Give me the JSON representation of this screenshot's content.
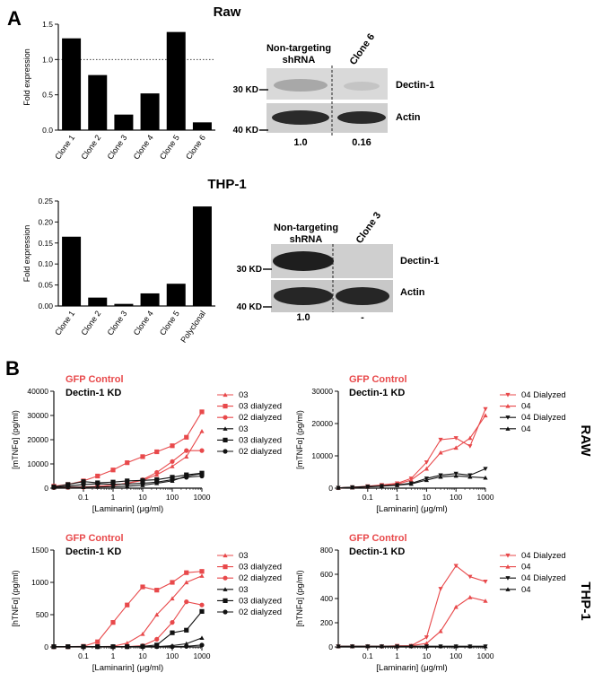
{
  "panel_a": {
    "letter": "A",
    "raw_title": "Raw",
    "thp1_title": "THP-1"
  },
  "panel_b": {
    "letter": "B",
    "row_labels": [
      "RAW",
      "THP-1"
    ],
    "group_gfp": "GFP Control",
    "group_kd": "Dectin-1 KD",
    "red": "#e8494b",
    "black": "#111111"
  },
  "blots": [
    {
      "col1": [
        "Non-targeting",
        "shRNA"
      ],
      "col2": "Clone 6",
      "band1": "Dectin-1",
      "band2": "Actin",
      "marker1": "30 KD",
      "marker2": "40 KD",
      "quant": [
        "1.0",
        "0.16"
      ]
    },
    {
      "col1": [
        "Non-targeting",
        "shRNA"
      ],
      "col2": "Clone 3",
      "band1": "Dectin-1",
      "band2": "Actin",
      "marker1": "30 KD",
      "marker2": "40 KD",
      "quant": [
        "1.0",
        "-"
      ]
    }
  ],
  "chart_data": [
    {
      "type": "bar",
      "title": "Raw",
      "ylabel": "Fold expression",
      "categories": [
        "Clone 1",
        "Clone 2",
        "Clone 3",
        "Clone 4",
        "Clone 5",
        "Clone 6"
      ],
      "values": [
        1.3,
        0.78,
        0.22,
        0.52,
        1.39,
        0.11
      ],
      "ylim": [
        0,
        1.5
      ],
      "yticks": [
        "0.0",
        "0.5",
        "1.0",
        "1.5"
      ],
      "reference_line": 1.0
    },
    {
      "type": "bar",
      "title": "THP-1",
      "ylabel": "Fold expression",
      "categories": [
        "Clone 1",
        "Clone 2",
        "Clone 3",
        "Clone 4",
        "Clone 5",
        "Polyclonal"
      ],
      "values": [
        0.165,
        0.02,
        0.005,
        0.03,
        0.053,
        0.237
      ],
      "ylim": [
        0,
        0.25
      ],
      "yticks": [
        "0.00",
        "0.05",
        "0.10",
        "0.15",
        "0.20",
        "0.25"
      ]
    },
    {
      "type": "line",
      "ylabel": "[mTNFα] (pg/ml)",
      "xlabel": "[Laminarin] (μg/ml)",
      "xscale": "log",
      "x": [
        0.01,
        0.03,
        0.1,
        0.3,
        1,
        3,
        10,
        30,
        100,
        300,
        1000
      ],
      "xticks": [
        "0.1",
        "1",
        "10",
        "100",
        "1000"
      ],
      "ylim": [
        0,
        40000
      ],
      "yticks": [
        "0",
        "10000",
        "20000",
        "30000",
        "40000"
      ],
      "series": [
        {
          "name": "03",
          "color": "#e8494b",
          "marker": "triangle-up",
          "values": [
            300,
            400,
            500,
            700,
            1200,
            2000,
            3200,
            5500,
            9000,
            13000,
            23500
          ]
        },
        {
          "name": "03 dialyzed",
          "color": "#e8494b",
          "marker": "square",
          "values": [
            800,
            1500,
            3000,
            5000,
            7500,
            10500,
            13000,
            15000,
            17500,
            21000,
            31500
          ]
        },
        {
          "name": "02 dialyzed",
          "color": "#e8494b",
          "marker": "circle",
          "values": [
            200,
            300,
            400,
            700,
            1200,
            2000,
            3500,
            6500,
            11000,
            15500,
            15500
          ]
        },
        {
          "name": "03",
          "color": "#111111",
          "marker": "triangle-up",
          "values": [
            200,
            300,
            400,
            500,
            600,
            800,
            1200,
            2000,
            3000,
            5000,
            6000
          ]
        },
        {
          "name": "03 dialyzed",
          "color": "#111111",
          "marker": "square",
          "values": [
            500,
            1500,
            2700,
            2200,
            2500,
            3000,
            3200,
            3500,
            4500,
            5500,
            6200
          ]
        },
        {
          "name": "02 dialyzed",
          "color": "#111111",
          "marker": "circle",
          "values": [
            300,
            800,
            1500,
            1800,
            1600,
            1700,
            2000,
            2500,
            3500,
            4500,
            5000
          ]
        }
      ]
    },
    {
      "type": "line",
      "ylabel": "[mTNFα] (pg/ml)",
      "xlabel": "[Laminarin] (μg/ml)",
      "xscale": "log",
      "x": [
        0.01,
        0.03,
        0.1,
        0.3,
        1,
        3,
        10,
        30,
        100,
        300,
        1000
      ],
      "xticks": [
        "0.1",
        "1",
        "10",
        "100",
        "1000"
      ],
      "ylim": [
        0,
        30000
      ],
      "yticks": [
        "0",
        "10000",
        "20000",
        "30000"
      ],
      "series": [
        {
          "name": "04 Dialyzed",
          "color": "#e8494b",
          "marker": "triangle-down",
          "values": [
            100,
            300,
            600,
            1000,
            1500,
            3000,
            8000,
            15000,
            15500,
            13000,
            24500
          ]
        },
        {
          "name": "04",
          "color": "#e8494b",
          "marker": "triangle-up",
          "values": [
            100,
            200,
            400,
            800,
            1200,
            2500,
            6000,
            11000,
            12500,
            15500,
            22500
          ]
        },
        {
          "name": "04 Dialyzed",
          "color": "#111111",
          "marker": "triangle-down",
          "values": [
            100,
            300,
            500,
            700,
            1000,
            1500,
            3000,
            4000,
            4500,
            4000,
            6000
          ]
        },
        {
          "name": "04",
          "color": "#111111",
          "marker": "triangle-up",
          "values": [
            100,
            200,
            400,
            600,
            900,
            1300,
            2500,
            3500,
            3800,
            3500,
            3200
          ]
        }
      ]
    },
    {
      "type": "line",
      "ylabel": "[hTNFα] (pg/ml)",
      "xlabel": "[Laminarin] (μg/ml)",
      "xscale": "log",
      "x": [
        0.01,
        0.03,
        0.1,
        0.3,
        1,
        3,
        10,
        30,
        100,
        300,
        1000
      ],
      "xticks": [
        "0.1",
        "1",
        "10",
        "100",
        "1000"
      ],
      "ylim": [
        0,
        1500
      ],
      "yticks": [
        "0",
        "500",
        "1000",
        "1500"
      ],
      "series": [
        {
          "name": "03",
          "color": "#e8494b",
          "marker": "triangle-up",
          "values": [
            5,
            5,
            5,
            5,
            10,
            60,
            200,
            500,
            750,
            1000,
            1100
          ]
        },
        {
          "name": "03 dialyzed",
          "color": "#e8494b",
          "marker": "square",
          "values": [
            5,
            5,
            10,
            80,
            380,
            650,
            930,
            880,
            1000,
            1150,
            1170
          ]
        },
        {
          "name": "02 dialyzed",
          "color": "#e8494b",
          "marker": "circle",
          "values": [
            5,
            5,
            5,
            5,
            5,
            5,
            20,
            120,
            380,
            700,
            650
          ]
        },
        {
          "name": "03",
          "color": "#111111",
          "marker": "triangle-up",
          "values": [
            5,
            5,
            5,
            5,
            5,
            5,
            5,
            5,
            20,
            50,
            140
          ]
        },
        {
          "name": "03 dialyzed",
          "color": "#111111",
          "marker": "square",
          "values": [
            5,
            5,
            5,
            5,
            5,
            5,
            10,
            30,
            220,
            260,
            550
          ]
        },
        {
          "name": "02 dialyzed",
          "color": "#111111",
          "marker": "circle",
          "values": [
            5,
            5,
            5,
            5,
            5,
            5,
            5,
            5,
            5,
            10,
            30
          ]
        }
      ]
    },
    {
      "type": "line",
      "ylabel": "[hTNFα] (pg/ml)",
      "xlabel": "[Laminarin] (μg/ml)",
      "xscale": "log",
      "x": [
        0.01,
        0.03,
        0.1,
        0.3,
        1,
        3,
        10,
        30,
        100,
        300,
        1000
      ],
      "xticks": [
        "0.1",
        "1",
        "10",
        "100",
        "1000"
      ],
      "ylim": [
        0,
        800
      ],
      "yticks": [
        "0",
        "200",
        "400",
        "600",
        "800"
      ],
      "series": [
        {
          "name": "04 Dialyzed",
          "color": "#e8494b",
          "marker": "triangle-down",
          "values": [
            5,
            5,
            5,
            5,
            10,
            10,
            80,
            480,
            670,
            580,
            540
          ]
        },
        {
          "name": "04",
          "color": "#e8494b",
          "marker": "triangle-up",
          "values": [
            5,
            5,
            5,
            5,
            5,
            10,
            30,
            130,
            330,
            410,
            380
          ]
        },
        {
          "name": "04 Dialyzed",
          "color": "#111111",
          "marker": "triangle-down",
          "values": [
            5,
            5,
            5,
            5,
            5,
            5,
            5,
            5,
            5,
            5,
            5
          ]
        },
        {
          "name": "04",
          "color": "#111111",
          "marker": "triangle-up",
          "values": [
            5,
            5,
            5,
            5,
            5,
            5,
            5,
            5,
            5,
            5,
            5
          ]
        }
      ]
    }
  ]
}
